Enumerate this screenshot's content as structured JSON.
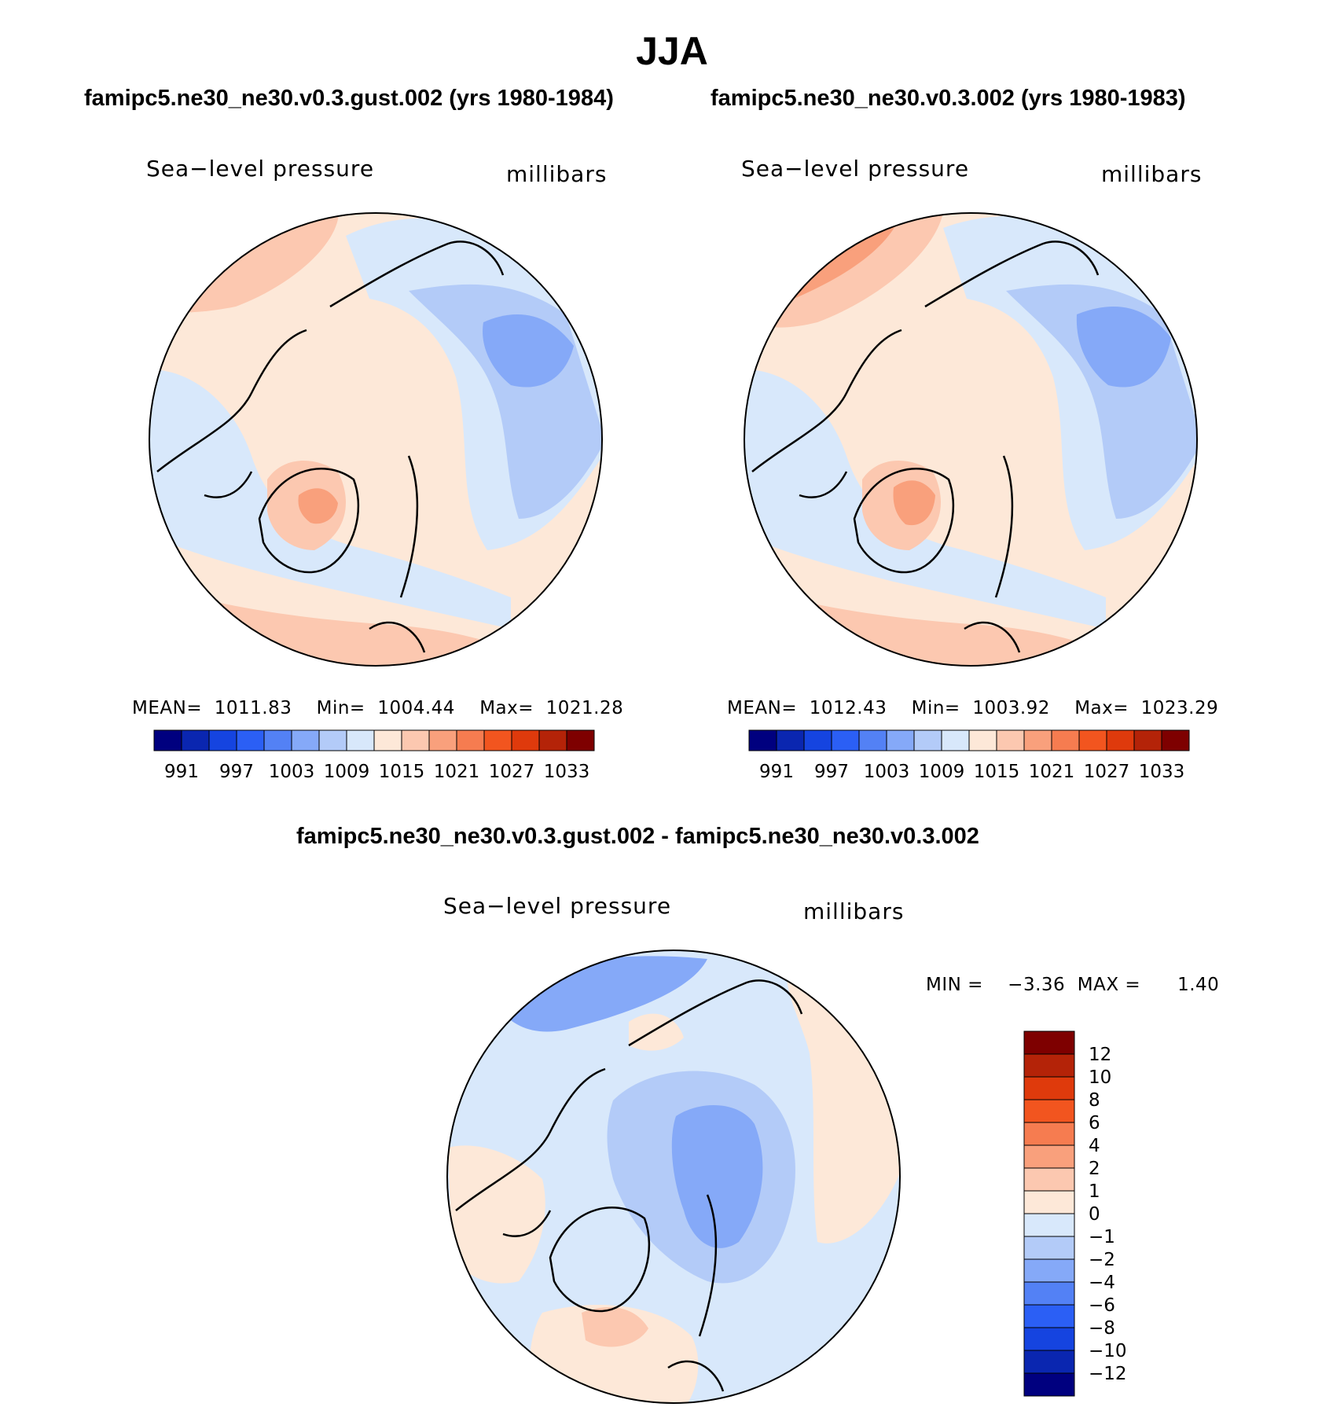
{
  "season": "JJA",
  "panels": [
    {
      "case": "famipc5.ne30_ne30.v0.3.gust.002 (yrs 1980-1984)",
      "variable": "Sea−level pressure",
      "units": "millibars",
      "mean_label": "MEAN=",
      "mean": "1011.83",
      "min_label": "Min=",
      "min": "1004.44",
      "max_label": "Max=",
      "max": "1021.28"
    },
    {
      "case": "famipc5.ne30_ne30.v0.3.002 (yrs 1980-1983)",
      "variable": "Sea−level pressure",
      "units": "millibars",
      "mean_label": "MEAN=",
      "mean": "1012.43",
      "min_label": "Min=",
      "min": "1003.92",
      "max_label": "Max=",
      "max": "1023.29"
    }
  ],
  "diff": {
    "case": "famipc5.ne30_ne30.v0.3.gust.002 - famipc5.ne30_ne30.v0.3.002",
    "variable": "Sea−level pressure",
    "units": "millibars",
    "min_label": "MIN =",
    "min": "−3.36",
    "max_label": "MAX =",
    "max": "1.40"
  },
  "colorbar_top": {
    "colors": [
      "#00007f",
      "#0a26b0",
      "#1544e0",
      "#2b5ff5",
      "#5381f5",
      "#85a9f8",
      "#b3cbf8",
      "#d8e8fb",
      "#fde8d8",
      "#fcc8b0",
      "#f9a07c",
      "#f67c50",
      "#f2551f",
      "#df3a0c",
      "#b42308",
      "#7e0000"
    ],
    "ticks": [
      "991",
      "997",
      "1003",
      "1009",
      "1015",
      "1021",
      "1027",
      "1033"
    ]
  },
  "colorbar_diff": {
    "colors": [
      "#7e0000",
      "#b42308",
      "#df3a0c",
      "#f2551f",
      "#f67c50",
      "#f9a07c",
      "#fcc8b0",
      "#fde8d8",
      "#d8e8fb",
      "#b3cbf8",
      "#85a9f8",
      "#5381f5",
      "#2b5ff5",
      "#1544e0",
      "#0a26b0",
      "#00007f"
    ],
    "ticks": [
      "12",
      "10",
      "8",
      "6",
      "4",
      "2",
      "1",
      "0",
      "−1",
      "−2",
      "−4",
      "−6",
      "−8",
      "−10",
      "−12"
    ]
  }
}
